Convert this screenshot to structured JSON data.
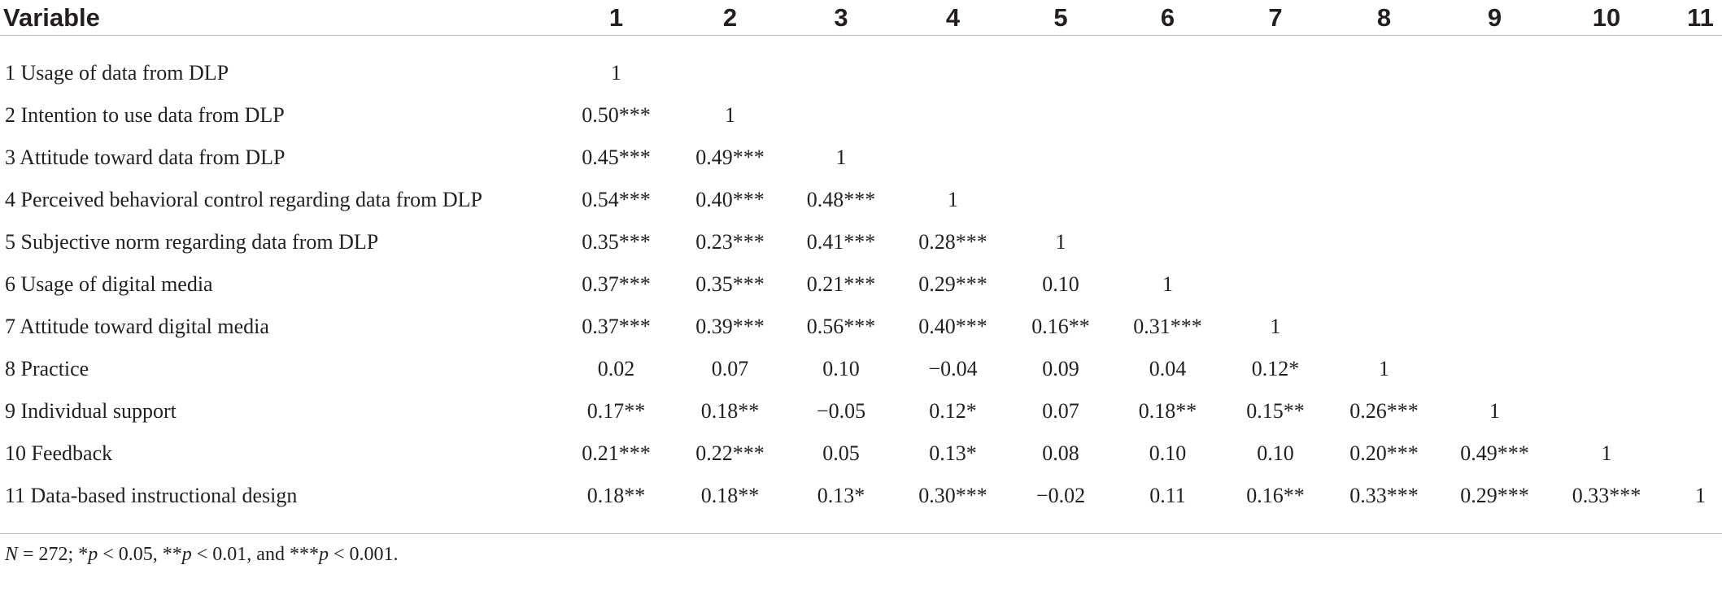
{
  "table": {
    "headers": [
      "Variable",
      "1",
      "2",
      "3",
      "4",
      "5",
      "6",
      "7",
      "8",
      "9",
      "10",
      "11"
    ],
    "rows": [
      {
        "label": "1 Usage of data from DLP",
        "values": [
          "1",
          "",
          "",
          "",
          "",
          "",
          "",
          "",
          "",
          "",
          ""
        ]
      },
      {
        "label": "2 Intention to use data from DLP",
        "values": [
          "0.50***",
          "1",
          "",
          "",
          "",
          "",
          "",
          "",
          "",
          "",
          ""
        ]
      },
      {
        "label": "3 Attitude toward data from DLP",
        "values": [
          "0.45***",
          "0.49***",
          "1",
          "",
          "",
          "",
          "",
          "",
          "",
          "",
          ""
        ]
      },
      {
        "label": "4 Perceived behavioral control regarding data from DLP",
        "values": [
          "0.54***",
          "0.40***",
          "0.48***",
          "1",
          "",
          "",
          "",
          "",
          "",
          "",
          ""
        ]
      },
      {
        "label": "5 Subjective norm regarding data from DLP",
        "values": [
          "0.35***",
          "0.23***",
          "0.41***",
          "0.28***",
          "1",
          "",
          "",
          "",
          "",
          "",
          ""
        ]
      },
      {
        "label": "6 Usage of digital media",
        "values": [
          "0.37***",
          "0.35***",
          "0.21***",
          "0.29***",
          "0.10",
          "1",
          "",
          "",
          "",
          "",
          ""
        ]
      },
      {
        "label": "7 Attitude toward digital media",
        "values": [
          "0.37***",
          "0.39***",
          "0.56***",
          "0.40***",
          "0.16**",
          "0.31***",
          "1",
          "",
          "",
          "",
          ""
        ]
      },
      {
        "label": "8 Practice",
        "values": [
          "0.02",
          "0.07",
          "0.10",
          "−0.04",
          "0.09",
          "0.04",
          "0.12*",
          "1",
          "",
          "",
          ""
        ]
      },
      {
        "label": "9 Individual support",
        "values": [
          "0.17**",
          "0.18**",
          "−0.05",
          "0.12*",
          "0.07",
          "0.18**",
          "0.15**",
          "0.26***",
          "1",
          "",
          ""
        ]
      },
      {
        "label": "10 Feedback",
        "values": [
          "0.21***",
          "0.22***",
          "0.05",
          "0.13*",
          "0.08",
          "0.10",
          "0.10",
          "0.20***",
          "0.49***",
          "1",
          ""
        ]
      },
      {
        "label": "11 Data-based instructional design",
        "values": [
          "0.18**",
          "0.18**",
          "0.13*",
          "0.30***",
          "−0.02",
          "0.11",
          "0.16**",
          "0.33***",
          "0.29***",
          "0.33***",
          "1"
        ]
      }
    ]
  },
  "note": {
    "n_symbol": "N",
    "n_text": " = 272; *",
    "p1": "p",
    "t1": " < 0.05, **",
    "p2": "p",
    "t2": " < 0.01, and ***",
    "p3": "p",
    "t3": " < 0.001."
  }
}
